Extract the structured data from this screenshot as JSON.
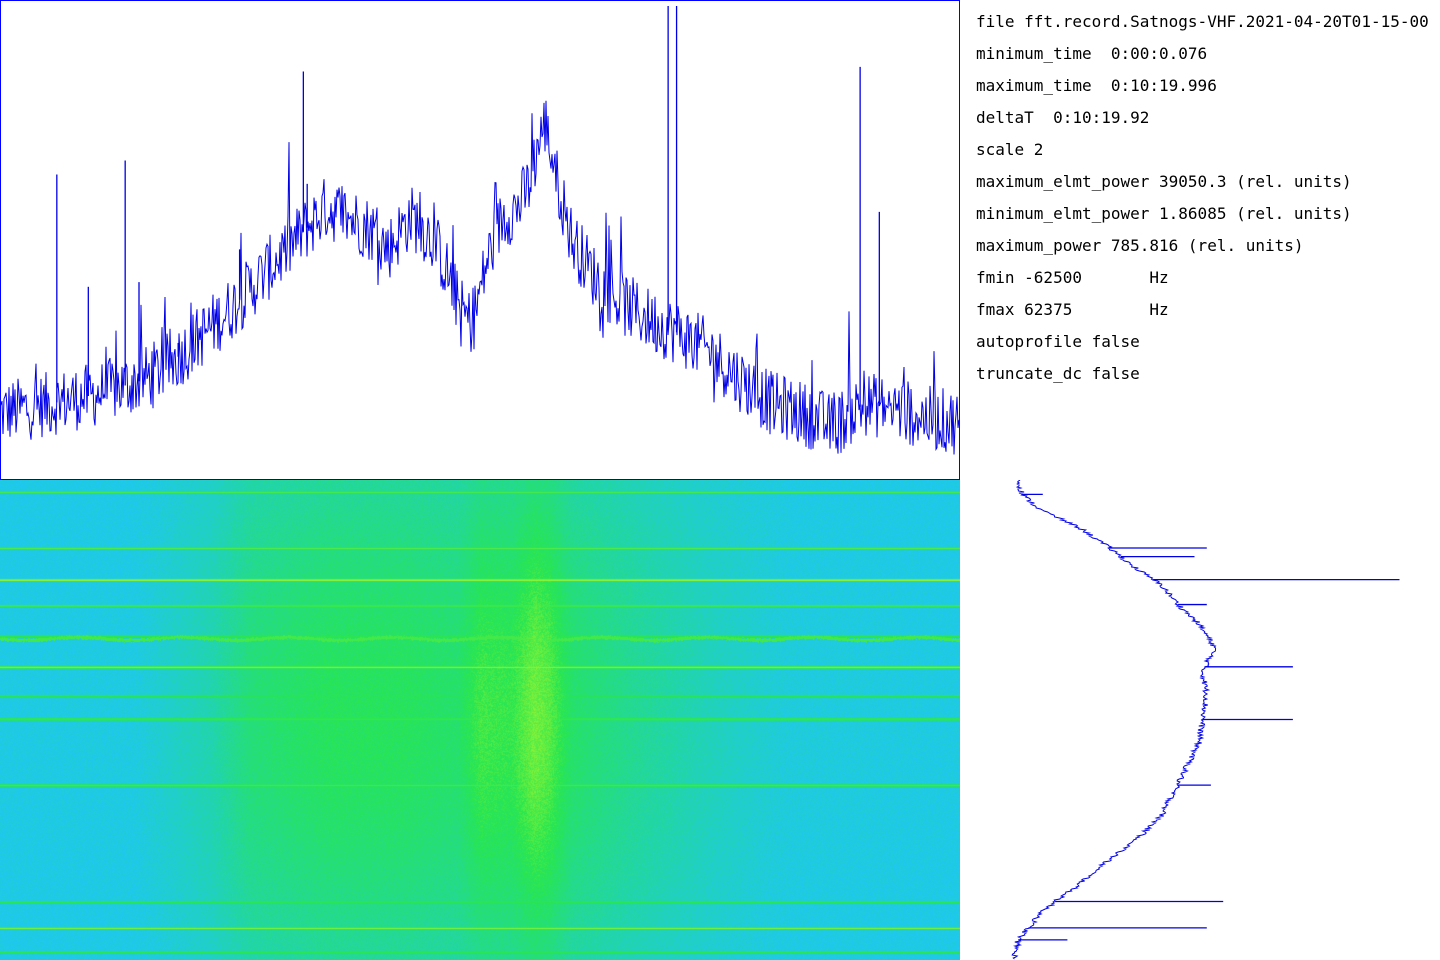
{
  "colors": {
    "trace": "#0000e6",
    "frame": "#0000ff",
    "waterfall_low": "#1ec8f0",
    "waterfall_mid": "#28e650",
    "waterfall_high": "#f0ff1e"
  },
  "info": {
    "lines": [
      "file fft.record.Satnogs-VHF.2021-04-20T01-15-00",
      "minimum_time  0:00:0.076",
      "maximum_time  0:10:19.996",
      "deltaT  0:10:19.92",
      "scale 2",
      "maximum_elmt_power 39050.3 (rel. units)",
      "minimum_elmt_power 1.86085 (rel. units)",
      "maximum_power 785.816 (rel. units)",
      "fmin -62500       Hz",
      "fmax 62375        Hz",
      "autoprofile false",
      "truncate_dc false"
    ]
  },
  "chart_data": [
    {
      "type": "line",
      "x_unit": "Hz",
      "xlim": [
        -62500,
        62375
      ],
      "y_scale": "relative",
      "ylim": [
        0,
        1
      ],
      "grid": false,
      "envelope": {
        "x": [
          -62500,
          -56000,
          -50000,
          -44000,
          -40000,
          -36000,
          -32000,
          -28000,
          -24000,
          -20000,
          -16000,
          -14000,
          -12000,
          -9000,
          -6000,
          -4000,
          -2500,
          -1000,
          1000,
          3000,
          5000,
          6500,
          7500,
          8500,
          10000,
          12000,
          15000,
          18000,
          22000,
          26000,
          30000,
          34000,
          38000,
          42000,
          46000,
          50000,
          54000,
          58000,
          62375
        ],
        "y": [
          0.13,
          0.15,
          0.17,
          0.2,
          0.24,
          0.3,
          0.36,
          0.43,
          0.5,
          0.57,
          0.54,
          0.52,
          0.48,
          0.55,
          0.5,
          0.42,
          0.35,
          0.32,
          0.46,
          0.55,
          0.57,
          0.62,
          0.7,
          0.75,
          0.63,
          0.5,
          0.42,
          0.37,
          0.33,
          0.3,
          0.26,
          0.2,
          0.15,
          0.13,
          0.1,
          0.15,
          0.14,
          0.12,
          0.11
        ]
      },
      "spikes": [
        {
          "x": -55100,
          "y": 0.64
        },
        {
          "x": -51000,
          "y": 0.4
        },
        {
          "x": -46200,
          "y": 0.67
        },
        {
          "x": -44400,
          "y": 0.41
        },
        {
          "x": -39300,
          "y": 0.28
        },
        {
          "x": -31300,
          "y": 0.48
        },
        {
          "x": -23000,
          "y": 0.86
        },
        {
          "x": -22500,
          "y": 0.62
        },
        {
          "x": 24500,
          "y": 1.0
        },
        {
          "x": 25600,
          "y": 1.0
        },
        {
          "x": 49500,
          "y": 0.87
        },
        {
          "x": 52000,
          "y": 0.56
        }
      ]
    },
    {
      "type": "heatmap",
      "x_unit": "Hz",
      "xlim": [
        -62500,
        62375
      ],
      "y_unit": "time",
      "ylim": [
        "0:00:0.076",
        "0:10:19.996"
      ],
      "freq_profile": {
        "x": [
          -62500,
          -45000,
          -35000,
          -30000,
          -20000,
          -10000,
          -3000,
          0,
          4000,
          7000,
          9000,
          12000,
          20000,
          30000,
          40000,
          62375
        ],
        "y": [
          0.05,
          0.06,
          0.25,
          0.45,
          0.55,
          0.55,
          0.5,
          0.65,
          0.62,
          0.75,
          0.7,
          0.5,
          0.35,
          0.2,
          0.08,
          0.05
        ]
      },
      "bright_time_lines": [
        {
          "t": 0.025,
          "w": 0.45
        },
        {
          "t": 0.142,
          "w": 0.5
        },
        {
          "t": 0.208,
          "w": 1.0
        },
        {
          "t": 0.262,
          "w": 0.55
        },
        {
          "t": 0.326,
          "w": 0.35
        },
        {
          "t": 0.39,
          "w": 0.8
        },
        {
          "t": 0.45,
          "w": 0.3
        },
        {
          "t": 0.498,
          "w": 0.5
        },
        {
          "t": 0.637,
          "w": 0.45
        },
        {
          "t": 0.88,
          "w": 0.4
        },
        {
          "t": 0.935,
          "w": 0.75
        },
        {
          "t": 0.985,
          "w": 0.35
        }
      ],
      "wavy_line": {
        "t": 0.33,
        "w": 0.7
      }
    },
    {
      "type": "line",
      "orientation": "vertical",
      "y_unit": "time",
      "ylim": [
        "0:00:0.076",
        "0:10:19.996"
      ],
      "x_scale": "relative",
      "xlim": [
        0,
        1
      ],
      "profile": {
        "t": [
          0.0,
          0.03,
          0.06,
          0.1,
          0.14,
          0.18,
          0.22,
          0.26,
          0.3,
          0.35,
          0.4,
          0.45,
          0.5,
          0.55,
          0.6,
          0.65,
          0.7,
          0.75,
          0.8,
          0.85,
          0.88,
          0.9,
          0.93,
          0.96,
          1.0
        ],
        "v": [
          0.02,
          0.03,
          0.07,
          0.17,
          0.24,
          0.3,
          0.37,
          0.41,
          0.46,
          0.5,
          0.47,
          0.48,
          0.47,
          0.46,
          0.43,
          0.4,
          0.37,
          0.31,
          0.23,
          0.16,
          0.11,
          0.08,
          0.05,
          0.02,
          0.01
        ]
      },
      "spikes": [
        {
          "t": 0.03,
          "v": 0.08
        },
        {
          "t": 0.142,
          "v": 0.48
        },
        {
          "t": 0.16,
          "v": 0.45
        },
        {
          "t": 0.208,
          "v": 0.95
        },
        {
          "t": 0.26,
          "v": 0.48
        },
        {
          "t": 0.39,
          "v": 0.69
        },
        {
          "t": 0.5,
          "v": 0.69
        },
        {
          "t": 0.637,
          "v": 0.49
        },
        {
          "t": 0.88,
          "v": 0.52
        },
        {
          "t": 0.935,
          "v": 0.48
        },
        {
          "t": 0.96,
          "v": 0.14
        }
      ]
    }
  ]
}
